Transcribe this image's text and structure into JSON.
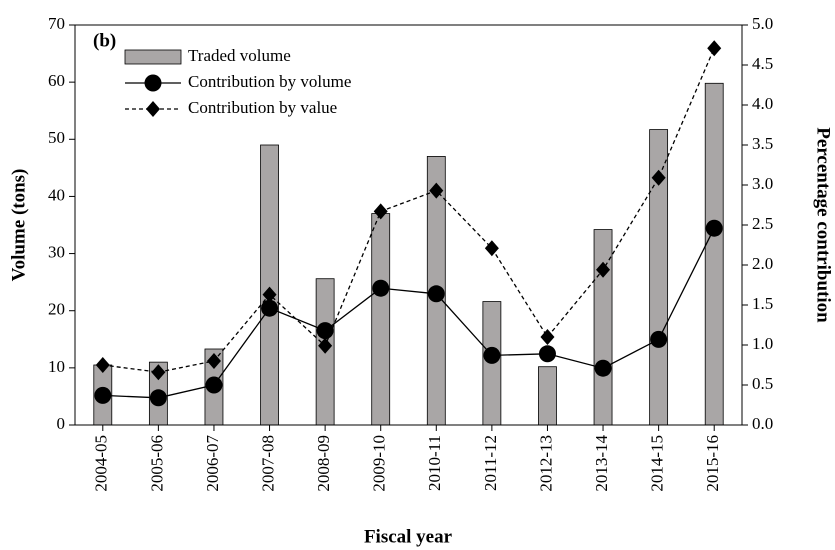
{
  "chart_data": {
    "type": "bar",
    "annotation": "(b)",
    "xlabel": "Fiscal year",
    "ylabel": "Volume (tons)",
    "y2label": "Percentage contribution",
    "categories": [
      "2004-05",
      "2005-06",
      "2006-07",
      "2007-08",
      "2008-09",
      "2009-10",
      "2010-11",
      "2011-12",
      "2012-13",
      "2013-14",
      "2014-15",
      "2015-16"
    ],
    "series": [
      {
        "name": "Traded volume",
        "type": "bar",
        "color": "#a9a6a6",
        "values": [
          10.5,
          11,
          13.3,
          49,
          25.6,
          37,
          47,
          21.6,
          10.2,
          34.2,
          51.7,
          59.8
        ]
      },
      {
        "name": "Contribution by volume",
        "type": "line",
        "axis": "y2",
        "color": "#000000",
        "marker": "circle",
        "linestyle": "solid",
        "values": [
          0.37,
          0.34,
          0.5,
          1.46,
          1.18,
          1.71,
          1.64,
          0.87,
          0.89,
          0.71,
          1.07,
          2.46
        ]
      },
      {
        "name": "Contribution by value",
        "type": "line",
        "axis": "y2",
        "color": "#000000",
        "marker": "diamond",
        "linestyle": "dashed",
        "values": [
          0.75,
          0.66,
          0.8,
          1.63,
          0.99,
          2.67,
          2.93,
          2.21,
          1.1,
          1.94,
          3.09,
          4.71
        ]
      }
    ],
    "ylim": [
      0,
      70
    ],
    "yticks": [
      0,
      10,
      20,
      30,
      40,
      50,
      60,
      70
    ],
    "y2lim": [
      0,
      5
    ],
    "y2ticks": [
      {
        "value": 0,
        "label": "0.0"
      },
      0.5,
      {
        "value": 1,
        "label": "1.0"
      },
      1.5,
      {
        "value": 2,
        "label": "2.0"
      },
      2.5,
      {
        "value": 3,
        "label": "3.0"
      },
      3.5,
      {
        "value": 4,
        "label": "4.0"
      },
      4.5,
      {
        "value": 5,
        "label": "5.0"
      }
    ],
    "legend": "upper left",
    "grid": false
  }
}
